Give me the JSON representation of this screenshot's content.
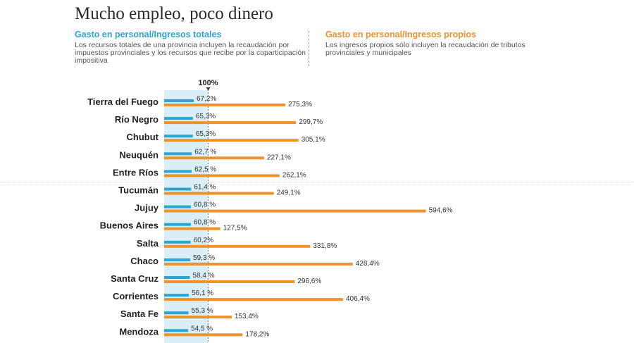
{
  "header": {
    "title": "Mucho empleo, poco dinero"
  },
  "legend": {
    "left": {
      "title": "Gasto en personal/Ingresos totales",
      "desc": "Los recursos totales de una provincia incluyen la recaudación por impuestos provinciales y los recursos que recibe por la coparticipación impositiva"
    },
    "right": {
      "title": "Gasto en personal/Ingresos propios",
      "desc": "Los ingresos propios sólo incluyen la recaudación de tributos provinciales y municipales"
    }
  },
  "colors": {
    "totales": "#2aa6d4",
    "propios": "#f0922b",
    "band": "#d9eef7"
  },
  "chart_data": {
    "type": "bar",
    "orientation": "horizontal",
    "reference_line": {
      "value": 100,
      "label": "100%"
    },
    "categories": [
      "Tierra del Fuego",
      "Río Negro",
      "Chubut",
      "Neuquén",
      "Entre Ríos",
      "Tucumán",
      "Jujuy",
      "Buenos Aires",
      "Salta",
      "Chaco",
      "Santa Cruz",
      "Corrientes",
      "Santa Fe",
      "Mendoza"
    ],
    "series": [
      {
        "name": "Gasto en personal/Ingresos totales",
        "values": [
          67.2,
          65.3,
          65.3,
          62.7,
          62.5,
          61.4,
          60.8,
          60.8,
          60.2,
          59.3,
          58.4,
          56.1,
          55.3,
          54.5
        ],
        "labels": [
          "67,2%",
          "65,3%",
          "65,3%",
          "62,7 %",
          "62,5 %",
          "61,4 %",
          "60,8 %",
          "60,8 %",
          "60,2%",
          "59,3 %",
          "58,4 %",
          "56,1 %",
          "55,3 %",
          "54,5 %"
        ]
      },
      {
        "name": "Gasto en personal/Ingresos propios",
        "values": [
          275.3,
          299.7,
          305.1,
          227.1,
          262.1,
          249.1,
          594.6,
          127.5,
          331.8,
          428.4,
          296.6,
          406.4,
          153.4,
          178.2
        ],
        "labels": [
          "275,3%",
          "299,7%",
          "305,1%",
          "227,1%",
          "262,1%",
          "249,1%",
          "594,6%",
          "127,5%",
          "331,8%",
          "428,4%",
          "296,6%",
          "406,4%",
          "153,4%",
          "178,2%"
        ]
      }
    ]
  }
}
